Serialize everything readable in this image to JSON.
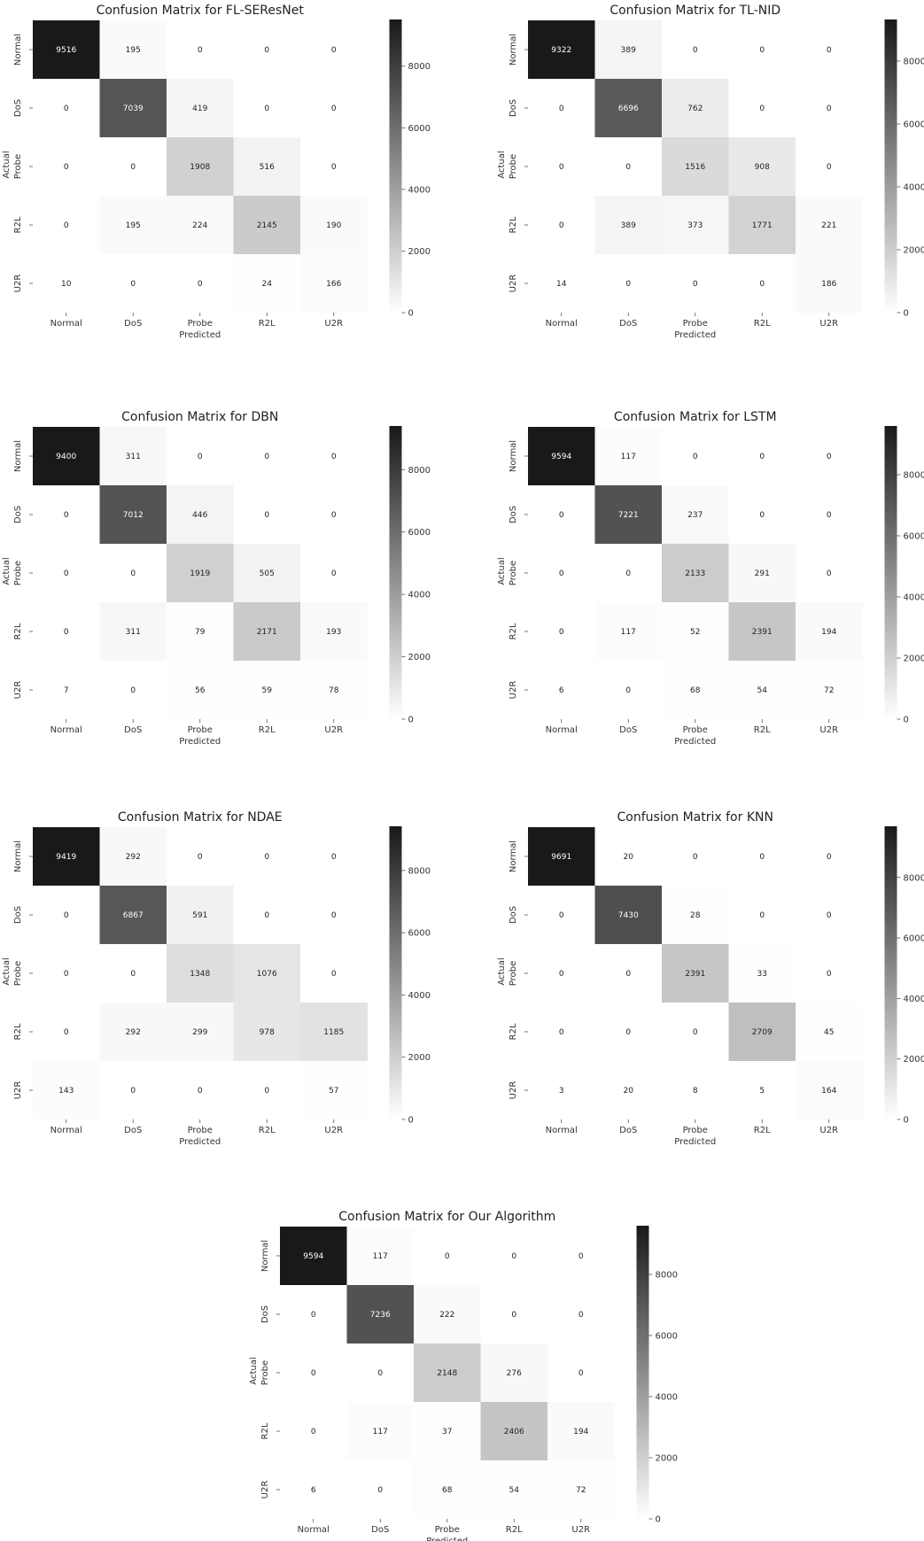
{
  "chart_data": [
    {
      "type": "heatmap",
      "title": "Confusion Matrix for FL-SEResNet",
      "xlabel": "Predicted",
      "ylabel": "Actual",
      "x_categories": [
        "Normal",
        "DoS",
        "Probe",
        "R2L",
        "U2R"
      ],
      "y_categories": [
        "Normal",
        "DoS",
        "Probe",
        "R2L",
        "U2R"
      ],
      "values": [
        [
          9516,
          195,
          0,
          0,
          0
        ],
        [
          0,
          7039,
          419,
          0,
          0
        ],
        [
          0,
          0,
          1908,
          516,
          0
        ],
        [
          0,
          195,
          224,
          2145,
          190
        ],
        [
          10,
          0,
          0,
          24,
          166
        ]
      ],
      "colorbar": {
        "ticks": [
          0,
          2000,
          4000,
          6000,
          8000
        ],
        "labels": [
          "0",
          "2000",
          "4000",
          "6000",
          "8000"
        ],
        "vmax": 9516
      },
      "cmap": "greys"
    },
    {
      "type": "heatmap",
      "title": "Confusion Matrix for TL-NID",
      "xlabel": "Predicted",
      "ylabel": "Actual",
      "x_categories": [
        "Normal",
        "DoS",
        "Probe",
        "R2L",
        "U2R"
      ],
      "y_categories": [
        "Normal",
        "DoS",
        "Probe",
        "R2L",
        "U2R"
      ],
      "values": [
        [
          9322,
          389,
          0,
          0,
          0
        ],
        [
          0,
          6696,
          762,
          0,
          0
        ],
        [
          0,
          0,
          1516,
          908,
          0
        ],
        [
          0,
          389,
          373,
          1771,
          221
        ],
        [
          14,
          0,
          0,
          0,
          186
        ]
      ],
      "colorbar": {
        "ticks": [
          0,
          2000,
          4000,
          6000,
          8000
        ],
        "labels": [
          "0",
          "2000",
          "4000",
          "6000",
          "8000"
        ],
        "vmax": 9322
      },
      "cmap": "greys"
    },
    {
      "type": "heatmap",
      "title": "Confusion Matrix for DBN",
      "xlabel": "Predicted",
      "ylabel": "Actual",
      "x_categories": [
        "Normal",
        "DoS",
        "Probe",
        "R2L",
        "U2R"
      ],
      "y_categories": [
        "Normal",
        "DoS",
        "Probe",
        "R2L",
        "U2R"
      ],
      "values": [
        [
          9400,
          311,
          0,
          0,
          0
        ],
        [
          0,
          7012,
          446,
          0,
          0
        ],
        [
          0,
          0,
          1919,
          505,
          0
        ],
        [
          0,
          311,
          79,
          2171,
          193
        ],
        [
          7,
          0,
          56,
          59,
          78
        ]
      ],
      "colorbar": {
        "ticks": [
          0,
          2000,
          4000,
          6000,
          8000
        ],
        "labels": [
          "0",
          "2000",
          "4000",
          "6000",
          "8000"
        ],
        "vmax": 9400
      },
      "cmap": "greys"
    },
    {
      "type": "heatmap",
      "title": "Confusion Matrix for LSTM",
      "xlabel": "Predicted",
      "ylabel": "Actual",
      "x_categories": [
        "Normal",
        "DoS",
        "Probe",
        "R2L",
        "U2R"
      ],
      "y_categories": [
        "Normal",
        "DoS",
        "Probe",
        "R2L",
        "U2R"
      ],
      "values": [
        [
          9594,
          117,
          0,
          0,
          0
        ],
        [
          0,
          7221,
          237,
          0,
          0
        ],
        [
          0,
          0,
          2133,
          291,
          0
        ],
        [
          0,
          117,
          52,
          2391,
          194
        ],
        [
          6,
          0,
          68,
          54,
          72
        ]
      ],
      "colorbar": {
        "ticks": [
          0,
          2000,
          4000,
          6000,
          8000
        ],
        "labels": [
          "0",
          "2000",
          "4000",
          "6000",
          "8000"
        ],
        "vmax": 9594
      },
      "cmap": "greys"
    },
    {
      "type": "heatmap",
      "title": "Confusion Matrix for NDAE",
      "xlabel": "Predicted",
      "ylabel": "Actual",
      "x_categories": [
        "Normal",
        "DoS",
        "Probe",
        "R2L",
        "U2R"
      ],
      "y_categories": [
        "Normal",
        "DoS",
        "Probe",
        "R2L",
        "U2R"
      ],
      "values": [
        [
          9419,
          292,
          0,
          0,
          0
        ],
        [
          0,
          6867,
          591,
          0,
          0
        ],
        [
          0,
          0,
          1348,
          1076,
          0
        ],
        [
          0,
          292,
          299,
          978,
          1185
        ],
        [
          143,
          0,
          0,
          0,
          57
        ]
      ],
      "colorbar": {
        "ticks": [
          0,
          2000,
          4000,
          6000,
          8000
        ],
        "labels": [
          "0",
          "2000",
          "4000",
          "6000",
          "8000"
        ],
        "vmax": 9419
      },
      "cmap": "greys"
    },
    {
      "type": "heatmap",
      "title": "Confusion Matrix for KNN",
      "xlabel": "Predicted",
      "ylabel": "Actual",
      "x_categories": [
        "Normal",
        "DoS",
        "Probe",
        "R2L",
        "U2R"
      ],
      "y_categories": [
        "Normal",
        "DoS",
        "Probe",
        "R2L",
        "U2R"
      ],
      "values": [
        [
          9691,
          20,
          0,
          0,
          0
        ],
        [
          0,
          7430,
          28,
          0,
          0
        ],
        [
          0,
          0,
          2391,
          33,
          0
        ],
        [
          0,
          0,
          0,
          2709,
          45
        ],
        [
          3,
          20,
          8,
          5,
          164
        ]
      ],
      "colorbar": {
        "ticks": [
          0,
          2000,
          4000,
          6000,
          8000
        ],
        "labels": [
          "0",
          "2000",
          "4000",
          "6000",
          "8000"
        ],
        "vmax": 9691
      },
      "cmap": "greys"
    },
    {
      "type": "heatmap",
      "title": "Confusion Matrix for Our Algorithm",
      "xlabel": "Predicted",
      "ylabel": "Actual",
      "x_categories": [
        "Normal",
        "DoS",
        "Probe",
        "R2L",
        "U2R"
      ],
      "y_categories": [
        "Normal",
        "DoS",
        "Probe",
        "R2L",
        "U2R"
      ],
      "values": [
        [
          9594,
          117,
          0,
          0,
          0
        ],
        [
          0,
          7236,
          222,
          0,
          0
        ],
        [
          0,
          0,
          2148,
          276,
          0
        ],
        [
          0,
          117,
          37,
          2406,
          194
        ],
        [
          6,
          0,
          68,
          54,
          72
        ]
      ],
      "colorbar": {
        "ticks": [
          0,
          2000,
          4000,
          6000,
          8000
        ],
        "labels": [
          "0",
          "2000",
          "4000",
          "6000",
          "8000"
        ],
        "vmax": 9594
      },
      "cmap": "greys"
    }
  ]
}
